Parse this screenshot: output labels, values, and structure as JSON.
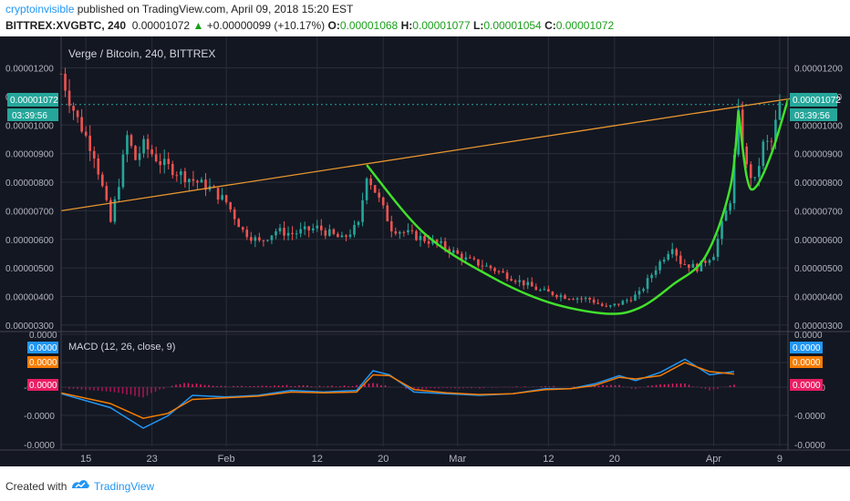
{
  "header": {
    "author": "cryptoinvisible",
    "published": " published on TradingView.com, April 09, 2018 15:20 EST",
    "symbol": "BITTREX:XVGBTC, 240",
    "last": "0.00001072",
    "change": "+0.00000099 (+10.17%)",
    "o_label": "O:",
    "o_value": "0.00001068",
    "h_label": "H:",
    "h_value": "0.00001077",
    "l_label": "L:",
    "l_value": "0.00001054",
    "c_label": "C:",
    "c_value": "0.00001072"
  },
  "footer": {
    "created_with": "Created with",
    "brand": "TradingView"
  },
  "chart_data": [
    {
      "type": "candlestick",
      "title": "Verge / Bitcoin, 240, BITTREX",
      "price_badge": "0.00001072",
      "countdown_badge": "03:39:56",
      "x_tick_labels": [
        "15",
        "23",
        "Feb",
        "12",
        "20",
        "Mar",
        "12",
        "20",
        "Apr",
        "9"
      ],
      "y_tick_labels": [
        "0.00001200",
        "0.00001100",
        "0.00001000",
        "0.00000900",
        "0.00000800",
        "0.00000700",
        "0.00000600",
        "0.00000500",
        "0.00000400",
        "0.00000300"
      ],
      "ylim": [
        2.9e-06,
        1.24e-05
      ],
      "grid": true,
      "close_path": [
        [
          "Jan 12",
          1.18e-05
        ],
        [
          "Jan 13",
          1.09e-05
        ],
        [
          "Jan 14",
          1.02e-05
        ],
        [
          "Jan 16",
          9e-06
        ],
        [
          "Jan 17",
          7.8e-06
        ],
        [
          "Jan 18",
          6.6e-06
        ],
        [
          "Jan 19",
          8e-06
        ],
        [
          "Jan 20",
          9.6e-06
        ],
        [
          "Jan 21",
          8.8e-06
        ],
        [
          "Jan 22",
          9.3e-06
        ],
        [
          "Jan 24",
          8.7e-06
        ],
        [
          "Jan 27",
          8.2e-06
        ],
        [
          "Jan 30",
          7.8e-06
        ],
        [
          "Feb 1",
          7.3e-06
        ],
        [
          "Feb 3",
          6.3e-06
        ],
        [
          "Feb 5",
          5.9e-06
        ],
        [
          "Feb 7",
          6.3e-06
        ],
        [
          "Feb 9",
          6.2e-06
        ],
        [
          "Feb 12",
          6.4e-06
        ],
        [
          "Feb 15",
          6e-06
        ],
        [
          "Feb 17",
          6.5e-06
        ],
        [
          "Feb 18",
          8.3e-06
        ],
        [
          "Feb 19",
          7.7e-06
        ],
        [
          "Feb 21",
          6.4e-06
        ],
        [
          "Feb 24",
          6.1e-06
        ],
        [
          "Feb 27",
          5.8e-06
        ],
        [
          "Mar 2",
          5.3e-06
        ],
        [
          "Mar 5",
          5e-06
        ],
        [
          "Mar 8",
          4.6e-06
        ],
        [
          "Mar 11",
          4.2e-06
        ],
        [
          "Mar 14",
          4e-06
        ],
        [
          "Mar 17",
          3.9e-06
        ],
        [
          "Mar 19",
          3.6e-06
        ],
        [
          "Mar 21",
          3.8e-06
        ],
        [
          "Mar 23",
          4.1e-06
        ],
        [
          "Mar 25",
          5e-06
        ],
        [
          "Mar 27",
          5.8e-06
        ],
        [
          "Mar 28",
          5.2e-06
        ],
        [
          "Mar 30",
          5e-06
        ],
        [
          "Apr 1",
          5.5e-06
        ],
        [
          "Apr 2",
          6.5e-06
        ],
        [
          "Apr 3",
          7.4e-06
        ],
        [
          "Apr 4",
          1.03e-05
        ],
        [
          "Apr 5",
          8.5e-06
        ],
        [
          "Apr 6",
          8e-06
        ],
        [
          "Apr 7",
          9.3e-06
        ],
        [
          "Apr 8",
          9.4e-06
        ],
        [
          "Apr 9",
          1.072e-05
        ]
      ],
      "annotations": [
        {
          "name": "resistance-trendline",
          "color": "#e8962f",
          "points": [
            [
              "Jan 12",
              7e-06
            ],
            [
              "Apr 12",
              1.1e-05
            ]
          ]
        },
        {
          "name": "rounded-bottom-curve",
          "color": "#41e02c",
          "points": [
            [
              "Feb 18",
              8.6e-06
            ],
            [
              "Feb 25",
              6.2e-06
            ],
            [
              "Mar 5",
              4.7e-06
            ],
            [
              "Mar 12",
              3.8e-06
            ],
            [
              "Mar 19",
              3.4e-06
            ],
            [
              "Mar 23",
              3.6e-06
            ],
            [
              "Mar 27",
              4.4e-06
            ],
            [
              "Mar 31",
              5.4e-06
            ],
            [
              "Apr 3",
              7.8e-06
            ],
            [
              "Apr 4",
              1.05e-05
            ]
          ]
        },
        {
          "name": "cup-handle-curve",
          "color": "#41e02c",
          "points": [
            [
              "Apr 4",
              1.05e-05
            ],
            [
              "Apr 5",
              8.2e-06
            ],
            [
              "Apr 6",
              7.8e-06
            ],
            [
              "Apr 8",
              9e-06
            ],
            [
              "Apr 10",
              1.09e-05
            ]
          ]
        }
      ]
    },
    {
      "type": "line",
      "title": "MACD (12, 26, close, 9)",
      "y_tick_labels": [
        "0.0000",
        "0.0000",
        "-0.0000",
        "-0.0000",
        "-0.0000"
      ],
      "badges": [
        {
          "label": "0.0000",
          "color": "#2196f3"
        },
        {
          "label": "0.0000",
          "color": "#f57c00"
        },
        {
          "label": "0.0000",
          "color": "#e91e63"
        }
      ],
      "series": [
        {
          "color": "#2196f3",
          "values": [
            [
              0,
              -0.8
            ],
            [
              6,
              -2.5
            ],
            [
              10,
              -5.0
            ],
            [
              13,
              -3.5
            ],
            [
              16,
              -1.0
            ],
            [
              20,
              -1.2
            ],
            [
              24,
              -1.0
            ],
            [
              28,
              -0.4
            ],
            [
              32,
              -0.6
            ],
            [
              36,
              -0.4
            ],
            [
              38,
              2.0
            ],
            [
              40,
              1.5
            ],
            [
              43,
              -0.6
            ],
            [
              47,
              -0.8
            ],
            [
              51,
              -1.0
            ],
            [
              55,
              -0.8
            ],
            [
              59,
              -0.2
            ],
            [
              62,
              -0.2
            ],
            [
              65,
              0.4
            ],
            [
              68,
              1.4
            ],
            [
              70,
              0.8
            ],
            [
              73,
              1.8
            ],
            [
              76,
              3.4
            ],
            [
              79,
              1.5
            ],
            [
              82,
              1.9
            ]
          ]
        },
        {
          "color": "#f57c00",
          "values": [
            [
              0,
              -0.7
            ],
            [
              6,
              -2.0
            ],
            [
              10,
              -3.8
            ],
            [
              13,
              -3.2
            ],
            [
              16,
              -1.5
            ],
            [
              20,
              -1.3
            ],
            [
              24,
              -1.1
            ],
            [
              28,
              -0.6
            ],
            [
              32,
              -0.7
            ],
            [
              36,
              -0.6
            ],
            [
              38,
              1.5
            ],
            [
              40,
              1.4
            ],
            [
              43,
              -0.3
            ],
            [
              47,
              -0.7
            ],
            [
              51,
              -0.9
            ],
            [
              55,
              -0.8
            ],
            [
              59,
              -0.3
            ],
            [
              62,
              -0.2
            ],
            [
              65,
              0.2
            ],
            [
              68,
              1.2
            ],
            [
              70,
              1.0
            ],
            [
              73,
              1.4
            ],
            [
              76,
              3.0
            ],
            [
              79,
              1.9
            ],
            [
              82,
              1.6
            ]
          ]
        }
      ],
      "histogram": [
        [
          0,
          -0.1
        ],
        [
          6,
          -0.5
        ],
        [
          10,
          -1.2
        ],
        [
          12,
          -0.3
        ],
        [
          15,
          0.5
        ],
        [
          20,
          0.1
        ],
        [
          24,
          0.1
        ],
        [
          28,
          0.2
        ],
        [
          32,
          0.1
        ],
        [
          36,
          0.2
        ],
        [
          38,
          0.5
        ],
        [
          40,
          0.1
        ],
        [
          43,
          -0.3
        ],
        [
          47,
          -0.1
        ],
        [
          51,
          -0.1
        ],
        [
          55,
          0
        ],
        [
          59,
          0.1
        ],
        [
          62,
          0
        ],
        [
          65,
          0.2
        ],
        [
          68,
          0.2
        ],
        [
          70,
          -0.2
        ],
        [
          73,
          0.4
        ],
        [
          76,
          0.4
        ],
        [
          79,
          -0.4
        ],
        [
          82,
          0.3
        ]
      ]
    }
  ]
}
